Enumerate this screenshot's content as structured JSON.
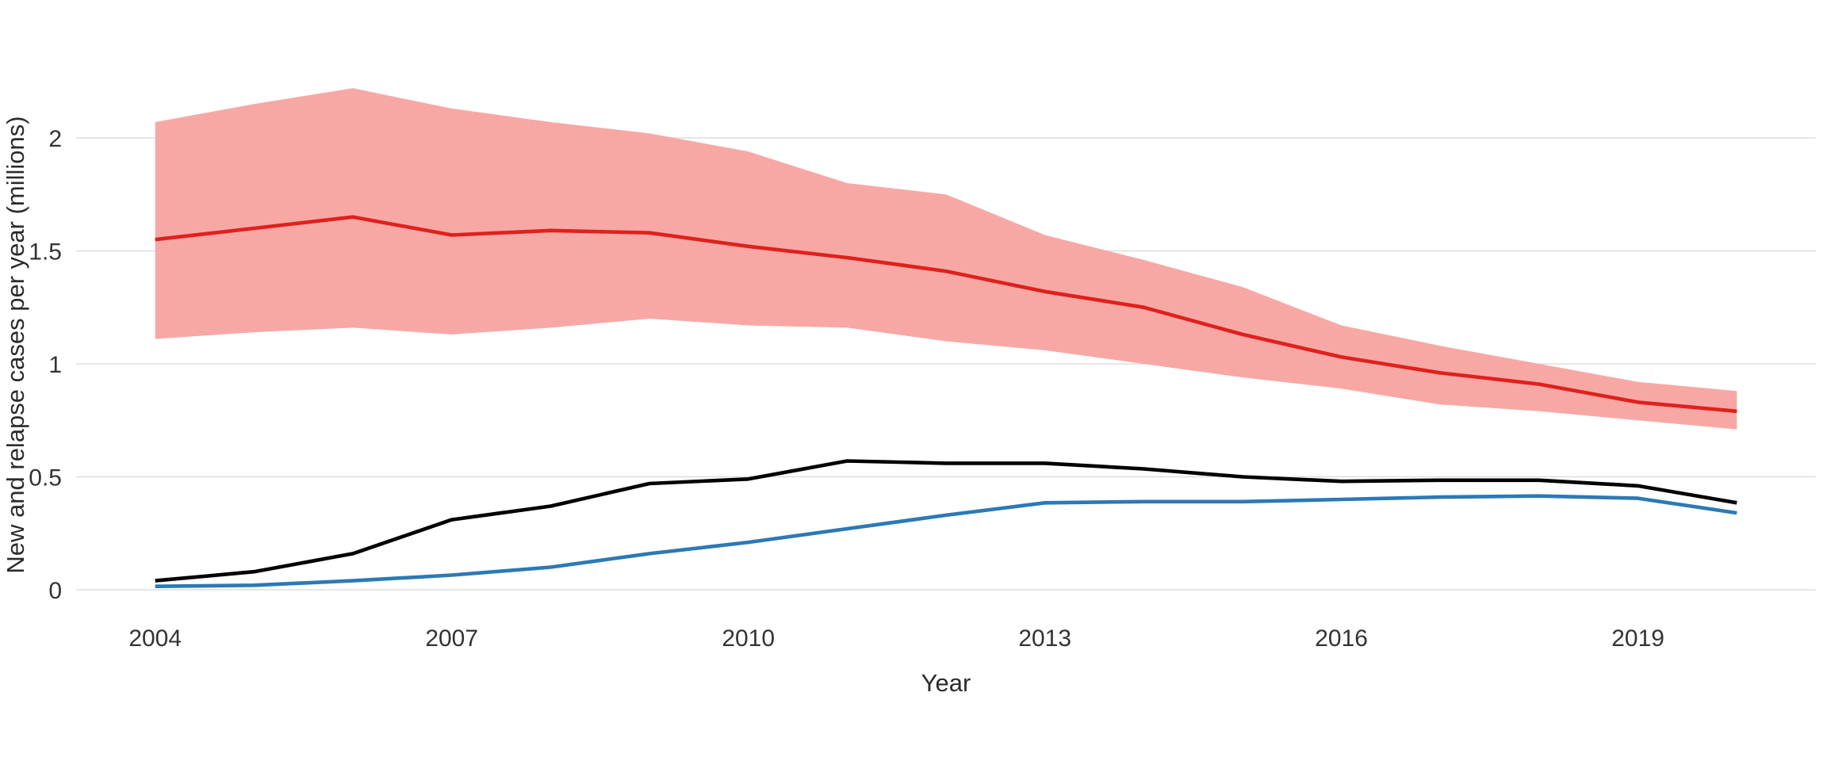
{
  "chart_data": {
    "type": "line",
    "title": "",
    "xlabel": "Year",
    "ylabel": "New and relapse cases per year (millions)",
    "x": [
      2004,
      2005,
      2006,
      2007,
      2008,
      2009,
      2010,
      2011,
      2012,
      2013,
      2014,
      2015,
      2016,
      2017,
      2018,
      2019,
      2020
    ],
    "series": [
      {
        "name": "red-estimate-line",
        "color": "#E0201C",
        "values": [
          1.55,
          1.6,
          1.65,
          1.57,
          1.59,
          1.58,
          1.52,
          1.47,
          1.41,
          1.32,
          1.25,
          1.13,
          1.03,
          0.96,
          0.91,
          0.83,
          0.79
        ]
      },
      {
        "name": "black-line",
        "color": "#000000",
        "values": [
          0.04,
          0.08,
          0.16,
          0.31,
          0.37,
          0.47,
          0.49,
          0.57,
          0.56,
          0.56,
          0.535,
          0.5,
          0.48,
          0.485,
          0.485,
          0.46,
          0.385
        ]
      },
      {
        "name": "blue-line",
        "color": "#2C79B5",
        "values": [
          0.015,
          0.02,
          0.04,
          0.065,
          0.1,
          0.16,
          0.21,
          0.27,
          0.33,
          0.385,
          0.39,
          0.39,
          0.4,
          0.41,
          0.415,
          0.405,
          0.34
        ]
      }
    ],
    "band": {
      "name": "red-uncertainty-band",
      "color": "#F7A8A5",
      "upper": [
        2.07,
        2.15,
        2.22,
        2.13,
        2.07,
        2.02,
        1.94,
        1.8,
        1.75,
        1.57,
        1.46,
        1.34,
        1.17,
        1.08,
        1.0,
        0.92,
        0.88
      ],
      "lower": [
        1.11,
        1.14,
        1.16,
        1.13,
        1.16,
        1.2,
        1.17,
        1.16,
        1.1,
        1.06,
        1.0,
        0.94,
        0.89,
        0.82,
        0.79,
        0.75,
        0.71
      ]
    },
    "x_ticks": {
      "values": [
        2004,
        2007,
        2010,
        2013,
        2016,
        2019
      ],
      "labels": [
        "2004",
        "2007",
        "2010",
        "2013",
        "2016",
        "2019"
      ]
    },
    "y_ticks": {
      "values": [
        0,
        0.5,
        1,
        1.5,
        2
      ],
      "labels": [
        "0",
        "0.5",
        "1",
        "1.5",
        "2"
      ]
    },
    "xlim": [
      2003.2,
      2020.8
    ],
    "ylim": [
      0,
      2.27
    ],
    "grid": "horizontal",
    "legend": "none",
    "background": "#FFFFFF",
    "gridline_color": "#DEDEDE",
    "text_color": "#333333"
  }
}
